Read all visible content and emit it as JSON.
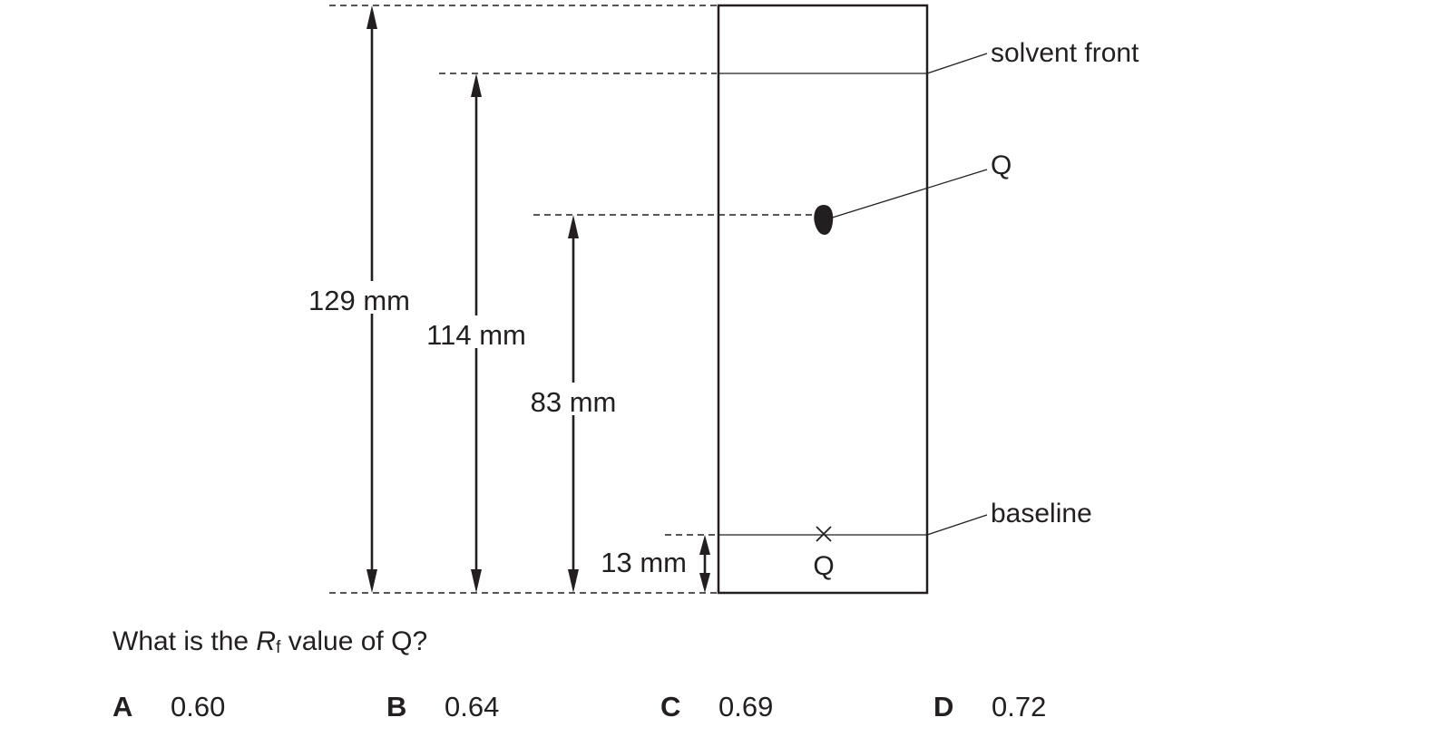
{
  "diagram": {
    "labels": {
      "solvent_front": "solvent front",
      "spot": "Q",
      "baseline": "baseline",
      "start_mark": "Q"
    },
    "measurements": {
      "to_top": "129 mm",
      "to_solvent_front": "114 mm",
      "to_spot": "83 mm",
      "to_baseline": "13 mm"
    }
  },
  "question": {
    "prefix": "What is the ",
    "rf_symbol": "R",
    "rf_subscript": "f",
    "suffix": " value of Q?"
  },
  "options": [
    {
      "letter": "A",
      "value": "0.60"
    },
    {
      "letter": "B",
      "value": "0.64"
    },
    {
      "letter": "C",
      "value": "0.69"
    },
    {
      "letter": "D",
      "value": "0.72"
    }
  ]
}
